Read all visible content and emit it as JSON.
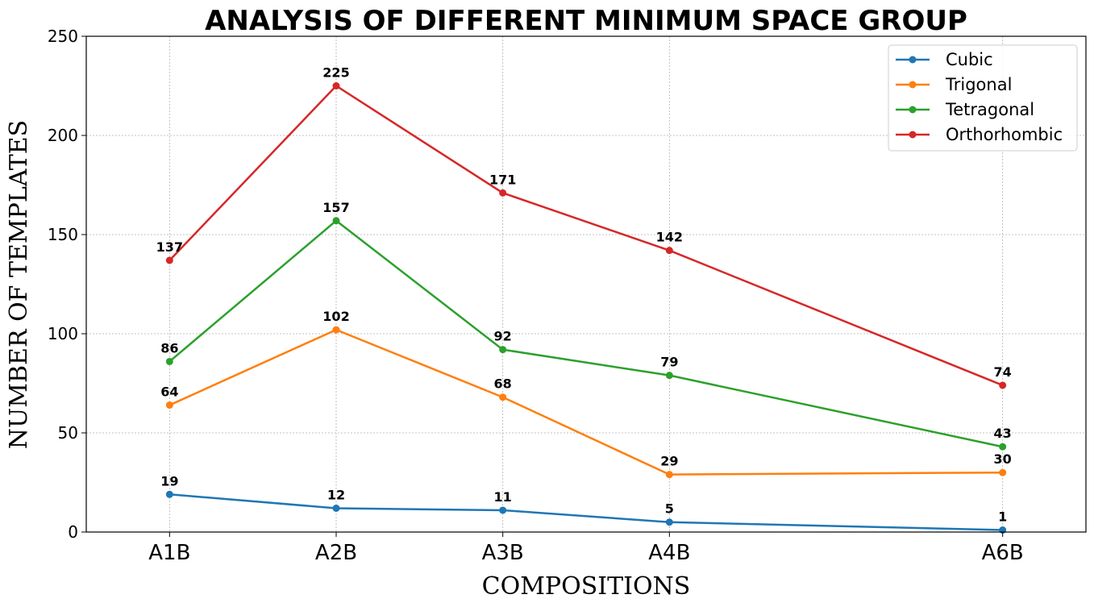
{
  "chart_data": {
    "type": "line",
    "title": "ANALYSIS OF DIFFERENT MINIMUM SPACE GROUP",
    "xlabel": "COMPOSITIONS",
    "ylabel": "NUMBER OF TEMPLATES",
    "ylim": [
      0,
      250
    ],
    "yticks": [
      "0",
      "50",
      "100",
      "150",
      "200",
      "250"
    ],
    "x": [
      1,
      2,
      3,
      4,
      6
    ],
    "xlim": [
      0.5,
      6.5
    ],
    "categories": [
      "A1B",
      "A2B",
      "A3B",
      "A4B",
      "A6B"
    ],
    "grid": true,
    "legend_position": "top-right",
    "series": [
      {
        "name": "Cubic",
        "color": "#1f77b4",
        "values": [
          19,
          12,
          11,
          5,
          1
        ]
      },
      {
        "name": "Trigonal",
        "color": "#ff7f0e",
        "values": [
          64,
          102,
          68,
          29,
          30
        ]
      },
      {
        "name": "Tetragonal",
        "color": "#2ca02c",
        "values": [
          86,
          157,
          92,
          79,
          43
        ]
      },
      {
        "name": "Orthorhombic",
        "color": "#d62728",
        "values": [
          137,
          225,
          171,
          142,
          74
        ]
      }
    ]
  }
}
